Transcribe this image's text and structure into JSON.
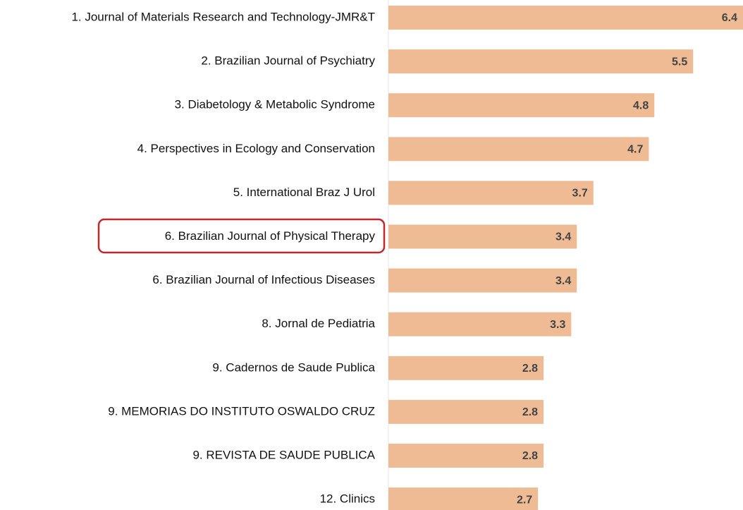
{
  "chart_data": {
    "type": "bar",
    "orientation": "horizontal",
    "categories": [
      "1. Journal of Materials Research and Technology-JMR&T",
      "2. Brazilian Journal of Psychiatry",
      "3. Diabetology & Metabolic Syndrome",
      "4. Perspectives in Ecology and Conservation",
      "5. International Braz J Urol",
      "6. Brazilian Journal of Physical Therapy",
      "6. Brazilian Journal of Infectious Diseases",
      "8. Jornal de Pediatria",
      "9. Cadernos de Saude Publica",
      "9. MEMORIAS DO INSTITUTO OSWALDO CRUZ",
      "9. REVISTA DE SAUDE PUBLICA",
      "12. Clinics"
    ],
    "values": [
      6.4,
      5.5,
      4.8,
      4.7,
      3.7,
      3.4,
      3.4,
      3.3,
      2.8,
      2.8,
      2.8,
      2.7
    ],
    "color": "#efbb94"
  }
}
